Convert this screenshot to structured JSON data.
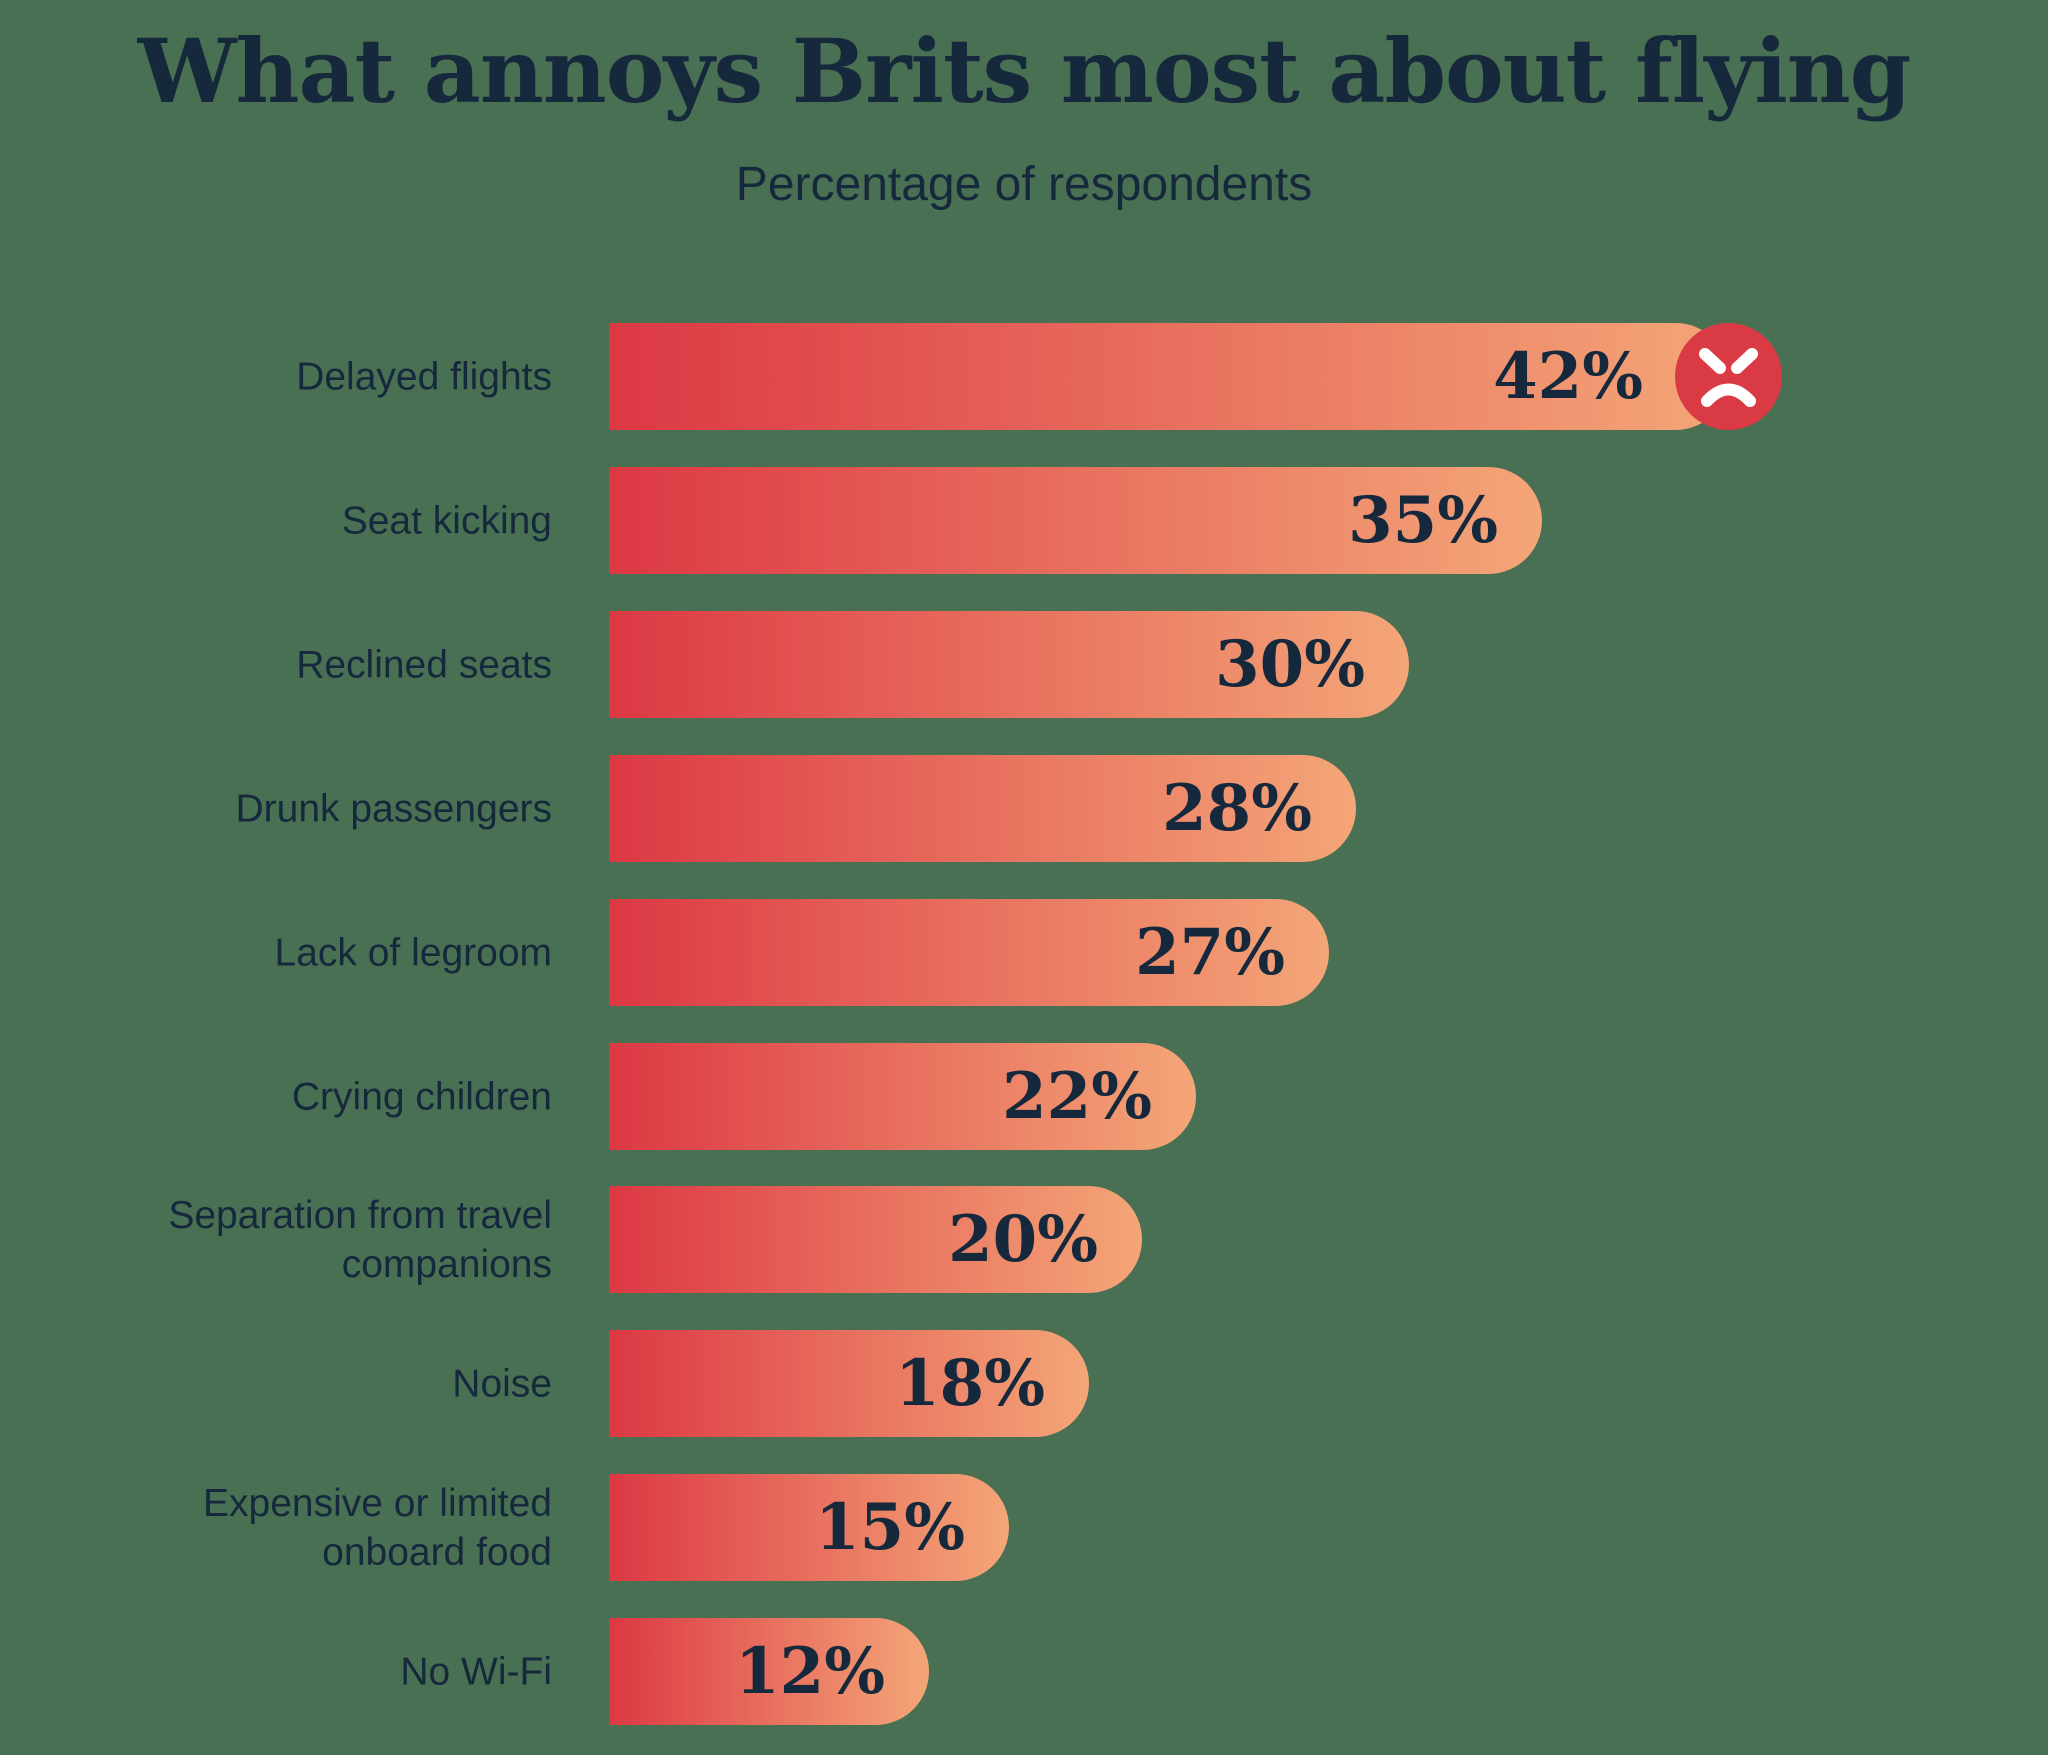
{
  "title": "What annoys Brits most about flying",
  "subtitle": "Percentage of respondents",
  "colors": {
    "background": "#4A7053",
    "text": "#16293C",
    "bar_gradient_start": "#DC3844",
    "bar_gradient_end": "#F4A678",
    "face_circle": "#DA3A44",
    "face_features": "#FFFFFF"
  },
  "chart_data": {
    "type": "bar",
    "orientation": "horizontal",
    "title": "What annoys Brits most about flying",
    "subtitle": "Percentage of respondents",
    "unit": "%",
    "categories": [
      "Delayed flights",
      "Seat kicking",
      "Reclined seats",
      "Drunk passengers",
      "Lack of legroom",
      "Crying children",
      "Separation from travel\ncompanions",
      "Noise",
      "Expensive or limited\nonboard food",
      "No Wi-Fi"
    ],
    "values": [
      42,
      35,
      30,
      28,
      27,
      22,
      20,
      18,
      15,
      12
    ],
    "value_labels": [
      "42%",
      "35%",
      "30%",
      "28%",
      "27%",
      "22%",
      "20%",
      "18%",
      "15%",
      "12%"
    ],
    "xlim": [
      0,
      54
    ],
    "grid": false,
    "legend": false,
    "bar_style": "red-to-peach gradient bars with rounded right caps, value labels inside bars",
    "annotations": [
      {
        "category_index": 0,
        "icon": "angry-face",
        "description": "Red angry-face emoji badge at the end of the 'Delayed flights' bar"
      }
    ]
  }
}
